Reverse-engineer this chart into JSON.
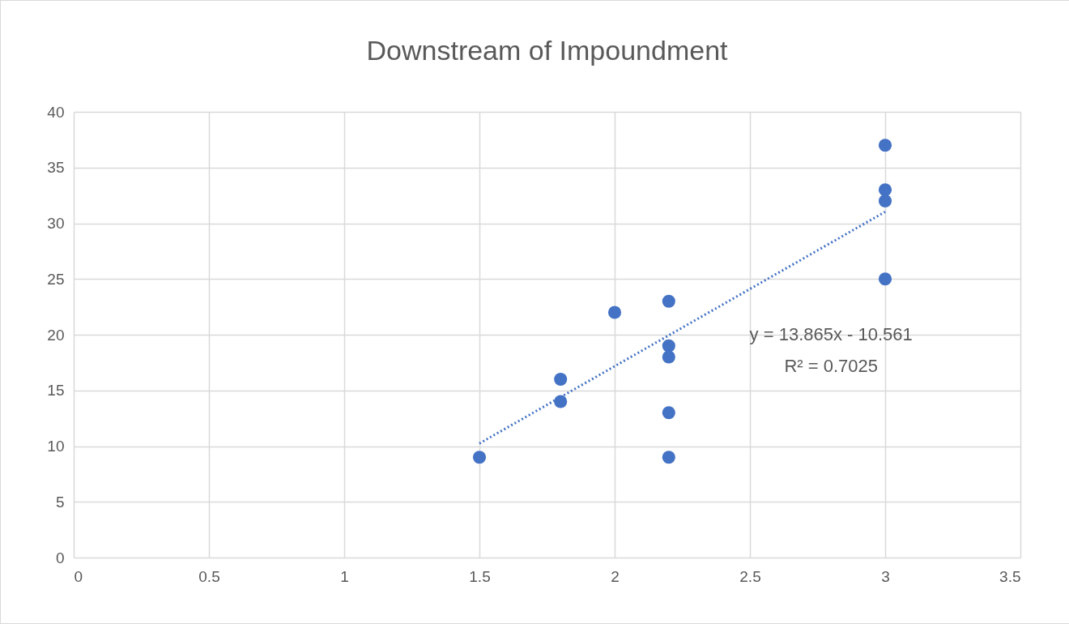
{
  "chart_data": {
    "type": "scatter",
    "title": "Downstream of Impoundment",
    "series": [
      {
        "color": "#4472c4",
        "marker": "circle",
        "x": [
          1.5,
          1.8,
          1.8,
          2,
          2.2,
          2.2,
          2.2,
          2.2,
          2.2,
          3,
          3,
          3,
          3
        ],
        "values": [
          9,
          16,
          14,
          22,
          23,
          19,
          18,
          13,
          9,
          37,
          33,
          32,
          25
        ]
      },
      {
        "type": "line",
        "color": "#4472c4",
        "line_style": "dotted",
        "x": [
          1.5,
          3
        ],
        "values": [
          10.24,
          31.03
        ]
      }
    ],
    "xlim": [
      0,
      3.5
    ],
    "xticks": [
      0,
      0.5,
      1,
      1.5,
      2,
      2.5,
      3,
      3.5
    ],
    "ylim": [
      0,
      40
    ],
    "yticks": [
      0,
      5,
      10,
      15,
      20,
      25,
      30,
      35,
      40
    ],
    "grid": true,
    "annotations": [
      "y = 13.865x - 10.561",
      "R² = 0.7025"
    ]
  }
}
